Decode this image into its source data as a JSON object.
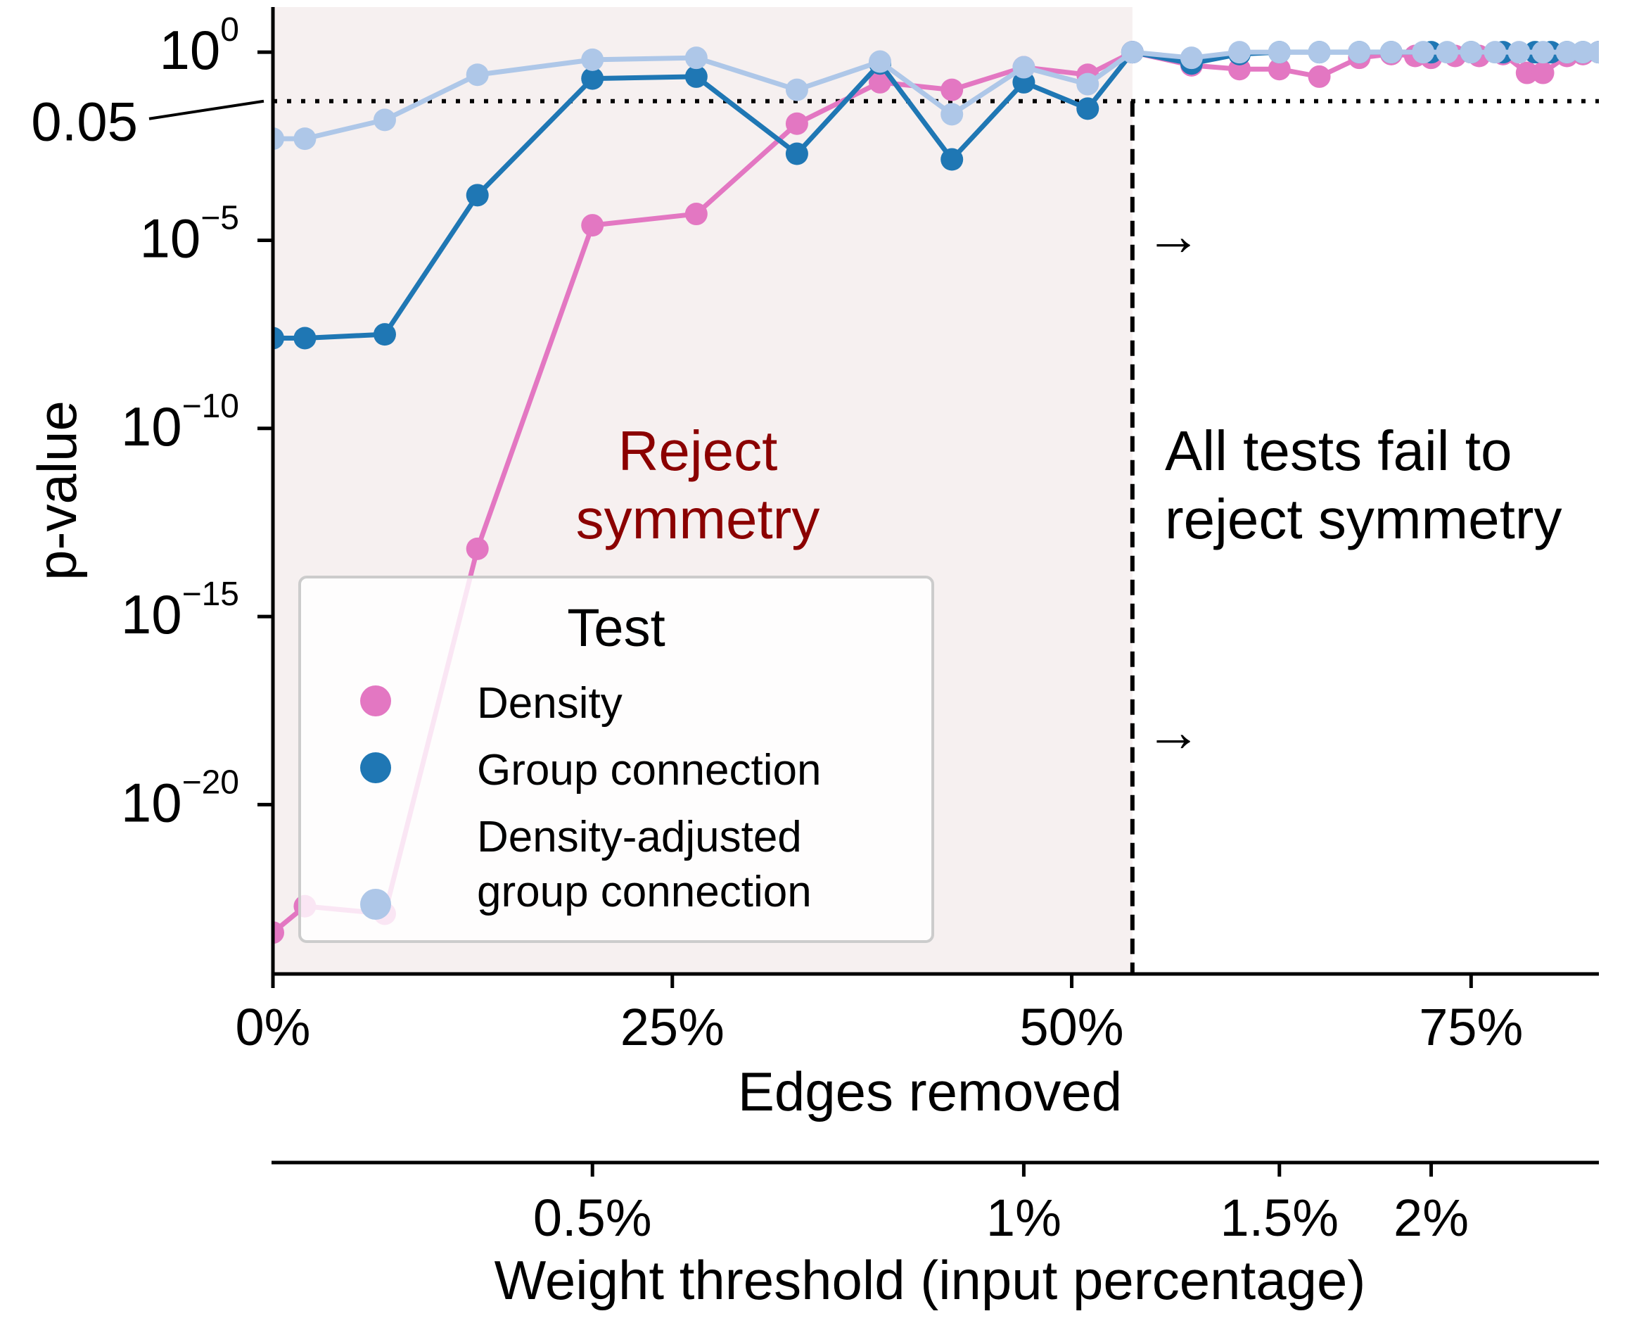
{
  "chart_data": {
    "type": "line",
    "x_axis": {
      "label": "Edges removed",
      "range": [
        0,
        83
      ],
      "ticks": [
        {
          "value": 0,
          "label": "0%"
        },
        {
          "value": 25,
          "label": "25%"
        },
        {
          "value": 50,
          "label": "50%"
        },
        {
          "value": 75,
          "label": "75%"
        }
      ]
    },
    "secondary_x_axis": {
      "label": "Weight threshold (input percentage)",
      "ticks": [
        {
          "edges_removed": 20,
          "label": "0.5%"
        },
        {
          "edges_removed": 47,
          "label": "1%"
        },
        {
          "edges_removed": 63,
          "label": "1.5%"
        },
        {
          "edges_removed": 72.5,
          "label": "2%"
        }
      ]
    },
    "y_axis": {
      "label": "p-value",
      "scale": "log",
      "range_log10": [
        -24.5,
        1.2
      ],
      "ticks": [
        {
          "exp": 0,
          "base": "10",
          "sup": "0"
        },
        {
          "exp": -5,
          "base": "10",
          "sup": "−5"
        },
        {
          "exp": -10,
          "base": "10",
          "sup": "−10"
        },
        {
          "exp": -15,
          "base": "10",
          "sup": "−15"
        },
        {
          "exp": -20,
          "base": "10",
          "sup": "−20"
        }
      ]
    },
    "reference_line": {
      "value": 0.05,
      "label": "0.05",
      "style": "dotted"
    },
    "threshold": {
      "edges_removed": 53.8,
      "style": "dashed"
    },
    "annotations": {
      "left": "Reject\nsymmetry",
      "right": "All tests fail to\nreject symmetry",
      "arrows": [
        "→",
        "→"
      ]
    },
    "legend": {
      "title": "Test",
      "placement": "lower-left"
    },
    "series": [
      {
        "name": "Density",
        "color": "#e377c2",
        "x": [
          0,
          2,
          7,
          12.8,
          20,
          26.5,
          32.8,
          38,
          42.5,
          47,
          51,
          53.8,
          57.5,
          60.5,
          63,
          65.5,
          68,
          70,
          71.5,
          72.5,
          74,
          75.5,
          77,
          78.5,
          79.5,
          81,
          82,
          83
        ],
        "y_log10": [
          -23.4,
          -22.7,
          -22.9,
          -13.2,
          -4.6,
          -4.3,
          -1.9,
          -0.8,
          -1.0,
          -0.4,
          -0.6,
          0,
          -0.35,
          -0.45,
          -0.45,
          -0.65,
          -0.15,
          -0.05,
          -0.1,
          -0.15,
          -0.1,
          -0.1,
          -0.05,
          -0.55,
          -0.55,
          -0.1,
          -0.05,
          0
        ]
      },
      {
        "name": "Group connection",
        "color": "#1f77b4",
        "x": [
          0,
          2,
          7,
          12.8,
          20,
          26.5,
          32.8,
          38,
          42.5,
          47,
          51,
          53.8,
          57.5,
          60.5,
          63,
          65.5,
          68,
          70,
          72.5,
          75,
          77,
          79,
          80,
          81,
          82,
          83
        ],
        "y_log10": [
          -7.6,
          -7.6,
          -7.5,
          -3.8,
          -0.7,
          -0.65,
          -2.7,
          -0.3,
          -2.85,
          -0.8,
          -1.5,
          0,
          -0.3,
          -0.05,
          0,
          0,
          0,
          0,
          0,
          0,
          0,
          0,
          0,
          0,
          0,
          0
        ]
      },
      {
        "name": "Density-adjusted\ngroup connection",
        "color": "#aec7e8",
        "x": [
          0,
          2,
          7,
          12.8,
          20,
          26.5,
          32.8,
          38,
          42.5,
          47,
          51,
          53.8,
          57.5,
          60.5,
          63,
          65.5,
          68,
          70,
          72,
          73.5,
          75,
          76.5,
          78,
          79.5,
          81,
          82,
          83
        ],
        "y_log10": [
          -2.3,
          -2.3,
          -1.8,
          -0.6,
          -0.2,
          -0.15,
          -1.0,
          -0.25,
          -1.65,
          -0.4,
          -0.85,
          0,
          -0.15,
          0,
          0,
          0,
          0,
          0,
          0,
          0,
          0,
          0,
          0,
          0,
          0,
          0,
          0
        ]
      }
    ]
  }
}
